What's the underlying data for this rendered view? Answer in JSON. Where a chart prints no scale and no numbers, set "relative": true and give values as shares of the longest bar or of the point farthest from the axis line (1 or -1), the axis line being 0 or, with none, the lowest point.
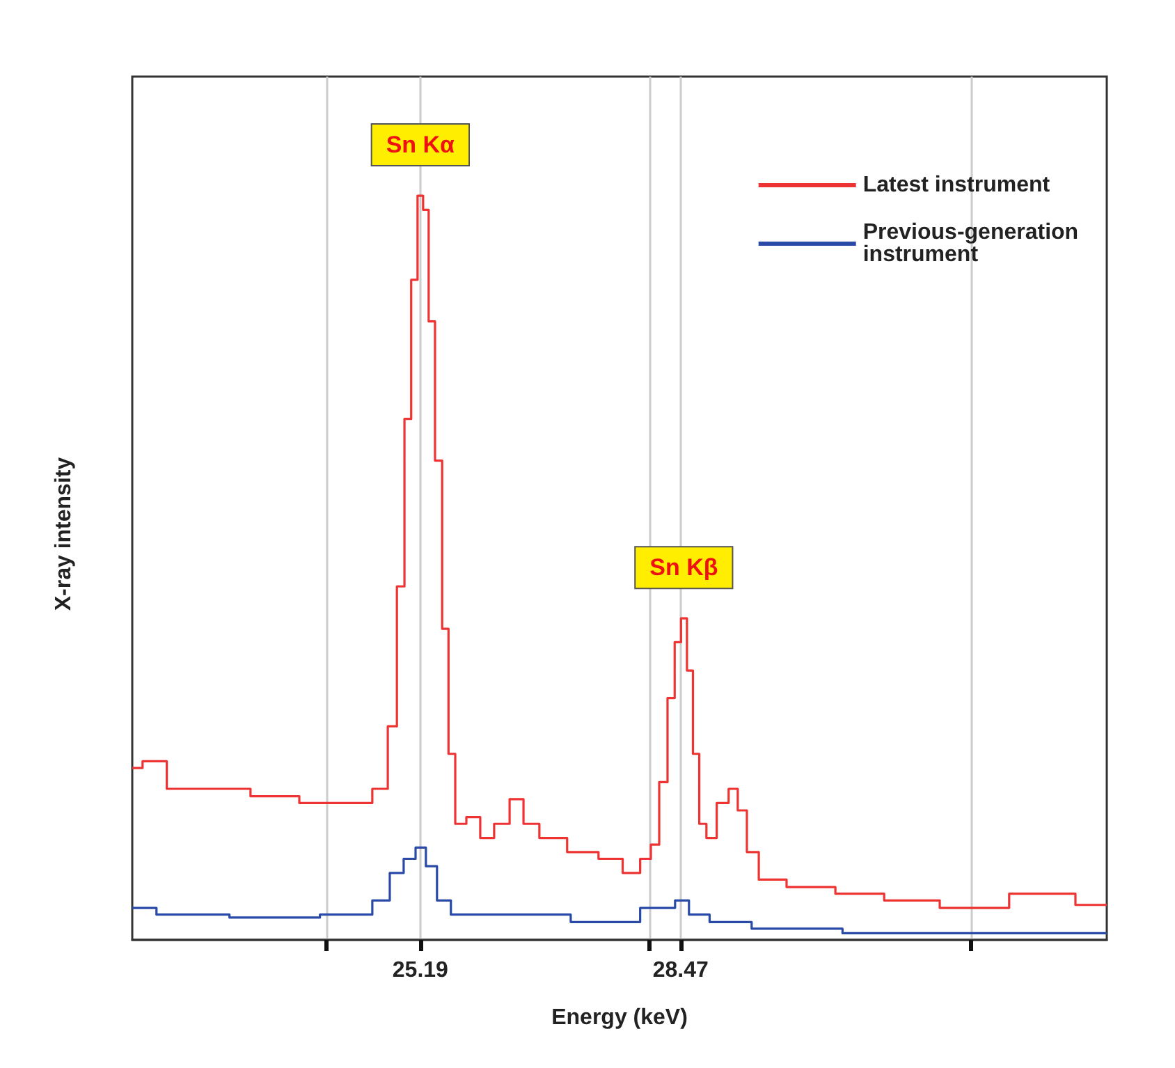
{
  "chart_data": {
    "type": "step",
    "xlabel": "Energy (keV)",
    "ylabel": "X-ray intensity",
    "relative": true,
    "xlim": [
      21.56,
      33.84
    ],
    "xticks": [
      {
        "value": 24.01,
        "label": null
      },
      25.19,
      {
        "value": 28.08,
        "label": null
      },
      28.47,
      {
        "value": 32.13,
        "label": null
      }
    ],
    "grid": "x",
    "legend": "top right",
    "annotations": [
      {
        "text": "Sn Kα",
        "x": 25.19,
        "y": 1
      },
      {
        "text": "Sn Kβ",
        "x": 28.51,
        "y": 0.432
      }
    ],
    "series": [
      {
        "name": "Latest instrument",
        "color": "#ee3333",
        "x": [
          21.56,
          21.82,
          22.17,
          22.7,
          23.4,
          23.93,
          24.45,
          24.72,
          24.84,
          24.95,
          25.03,
          25.12,
          25.19,
          25.26,
          25.33,
          25.42,
          25.51,
          25.58,
          25.68,
          25.86,
          26.03,
          26.21,
          26.42,
          26.56,
          26.82,
          27.26,
          27.61,
          27.87,
          28.05,
          28.14,
          28.26,
          28.35,
          28.44,
          28.51,
          28.59,
          28.66,
          28.75,
          28.84,
          29.01,
          29.14,
          29.24,
          29.37,
          29.54,
          30.07,
          30.77,
          31.3,
          32.17,
          33.05,
          33.84
        ],
        "values": [
          0.231,
          0.24,
          0.203,
          0.203,
          0.193,
          0.184,
          0.184,
          0.203,
          0.287,
          0.475,
          0.7,
          0.887,
          1,
          0.981,
          0.831,
          0.644,
          0.418,
          0.25,
          0.156,
          0.165,
          0.137,
          0.156,
          0.189,
          0.156,
          0.137,
          0.118,
          0.109,
          0.09,
          0.109,
          0.128,
          0.212,
          0.325,
          0.4,
          0.432,
          0.362,
          0.25,
          0.156,
          0.137,
          0.184,
          0.203,
          0.174,
          0.118,
          0.081,
          0.071,
          0.062,
          0.053,
          0.043,
          0.062,
          0.047
        ]
      },
      {
        "name": "Previous-generation instrument",
        "color": "#2a4aa8",
        "x": [
          21.56,
          22.17,
          23.4,
          24.45,
          24.72,
          24.89,
          25.07,
          25.19,
          25.33,
          25.47,
          25.68,
          26.56,
          27.61,
          28.31,
          28.49,
          28.66,
          29.01,
          29.72,
          31.3,
          33.84
        ],
        "values": [
          0.043,
          0.034,
          0.03,
          0.034,
          0.053,
          0.09,
          0.109,
          0.124,
          0.099,
          0.053,
          0.034,
          0.034,
          0.024,
          0.043,
          0.053,
          0.034,
          0.024,
          0.015,
          0.009,
          0.009
        ]
      }
    ]
  }
}
